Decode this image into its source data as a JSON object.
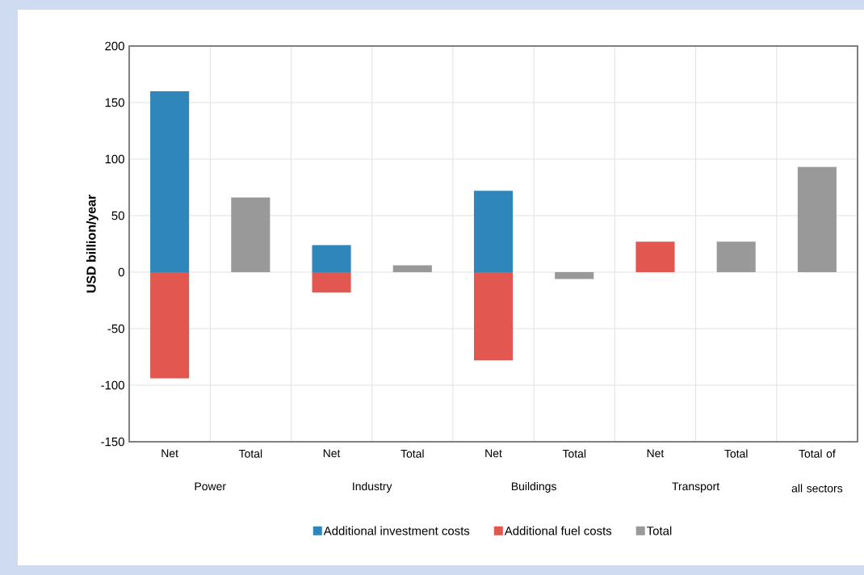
{
  "chart_data": {
    "type": "bar",
    "stacked": true,
    "ylabel": "USD billion/year",
    "categories": [
      "Net",
      "Total",
      "Net",
      "Total",
      "Net",
      "Total",
      "Net",
      "Total",
      "Total of all sectors"
    ],
    "series": [
      {
        "name": "Additional investment costs",
        "color": "#2e86bb",
        "values": [
          160,
          null,
          24,
          null,
          72,
          null,
          null,
          null,
          null
        ]
      },
      {
        "name": "Additional fuel costs",
        "color": "#e2574f",
        "values": [
          -94,
          null,
          -18,
          null,
          -78,
          null,
          27,
          null,
          null
        ]
      },
      {
        "name": "Total",
        "color": "#999999",
        "values": [
          null,
          66,
          null,
          6,
          null,
          -6,
          null,
          27,
          93
        ]
      }
    ],
    "annotations": [
      "Power",
      "Industry",
      "Buildings",
      "Transport"
    ],
    "ylim": [
      -150,
      200
    ],
    "yticks": [
      -150,
      -100,
      -50,
      0,
      50,
      100,
      150,
      200
    ],
    "grid": true,
    "legend": "bottom"
  }
}
